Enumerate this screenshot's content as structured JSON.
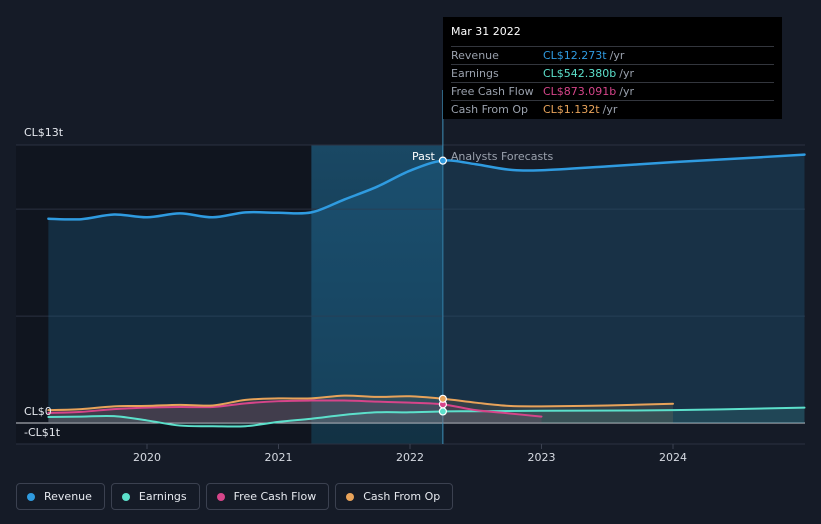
{
  "chart_data": {
    "type": "line",
    "x_unit": "year",
    "xlim": [
      2019.25,
      2025.0
    ],
    "ylim": [
      -1,
      13
    ],
    "y_axis_labels": {
      "top": "CL$13t",
      "zero": "CL$0",
      "bottom": "-CL$1t"
    },
    "x_ticks": [
      2020,
      2021,
      2022,
      2023,
      2024
    ],
    "x_tick_labels": [
      "2020",
      "2021",
      "2022",
      "2023",
      "2024"
    ],
    "divider_x": 2022.25,
    "forecast_region_start": 2021.25,
    "past_label": "Past",
    "forecast_label": "Analysts Forecasts",
    "series": [
      {
        "name": "Revenue",
        "color": "#2f9be0",
        "area": true,
        "x": [
          2019.25,
          2019.5,
          2019.75,
          2020.0,
          2020.25,
          2020.5,
          2020.75,
          2021.0,
          2021.25,
          2021.5,
          2021.75,
          2022.0,
          2022.25,
          2022.5,
          2022.75,
          2023.0,
          2023.5,
          2024.0,
          2024.5,
          2025.0
        ],
        "y": [
          9.55,
          9.53,
          9.75,
          9.62,
          9.8,
          9.62,
          9.85,
          9.83,
          9.85,
          10.45,
          11.05,
          11.8,
          12.27,
          12.1,
          11.85,
          11.82,
          12.0,
          12.2,
          12.37,
          12.55
        ]
      },
      {
        "name": "Earnings",
        "color": "#5ce0cb",
        "x": [
          2019.25,
          2019.5,
          2019.75,
          2020.0,
          2020.25,
          2020.5,
          2020.75,
          2021.0,
          2021.25,
          2021.5,
          2021.75,
          2022.0,
          2022.25,
          2022.5,
          2023.0,
          2024.0,
          2025.0
        ],
        "y": [
          0.28,
          0.3,
          0.32,
          0.12,
          -0.12,
          -0.15,
          -0.15,
          0.05,
          0.2,
          0.38,
          0.5,
          0.5,
          0.54,
          0.55,
          0.57,
          0.6,
          0.72
        ]
      },
      {
        "name": "Free Cash Flow",
        "color": "#d6458a",
        "x": [
          2019.25,
          2019.5,
          2019.75,
          2020.0,
          2020.25,
          2020.5,
          2020.75,
          2021.0,
          2021.25,
          2021.5,
          2021.75,
          2022.0,
          2022.25,
          2022.5,
          2022.75,
          2023.0
        ],
        "y": [
          0.47,
          0.52,
          0.65,
          0.72,
          0.75,
          0.75,
          0.92,
          1.02,
          1.05,
          1.05,
          1.0,
          0.95,
          0.873,
          0.6,
          0.45,
          0.3
        ]
      },
      {
        "name": "Cash From Op",
        "color": "#e8a35a",
        "x": [
          2019.25,
          2019.5,
          2019.75,
          2020.0,
          2020.25,
          2020.5,
          2020.75,
          2021.0,
          2021.25,
          2021.5,
          2021.75,
          2022.0,
          2022.25,
          2022.5,
          2022.75,
          2023.0,
          2023.5,
          2024.0
        ],
        "y": [
          0.6,
          0.65,
          0.78,
          0.8,
          0.85,
          0.82,
          1.08,
          1.15,
          1.15,
          1.28,
          1.22,
          1.25,
          1.132,
          0.95,
          0.8,
          0.78,
          0.82,
          0.9
        ]
      }
    ]
  },
  "tooltip": {
    "date": "Mar 31 2022",
    "unit": "/yr",
    "rows": [
      {
        "label": "Revenue",
        "value": "CL$12.273t",
        "color": "#2f9be0"
      },
      {
        "label": "Earnings",
        "value": "CL$542.380b",
        "color": "#5ce0cb"
      },
      {
        "label": "Free Cash Flow",
        "value": "CL$873.091b",
        "color": "#d6458a"
      },
      {
        "label": "Cash From Op",
        "value": "CL$1.132t",
        "color": "#e8a35a"
      }
    ]
  },
  "legend": [
    {
      "label": "Revenue",
      "color": "#2f9be0"
    },
    {
      "label": "Earnings",
      "color": "#5ce0cb"
    },
    {
      "label": "Free Cash Flow",
      "color": "#d6458a"
    },
    {
      "label": "Cash From Op",
      "color": "#e8a35a"
    }
  ]
}
